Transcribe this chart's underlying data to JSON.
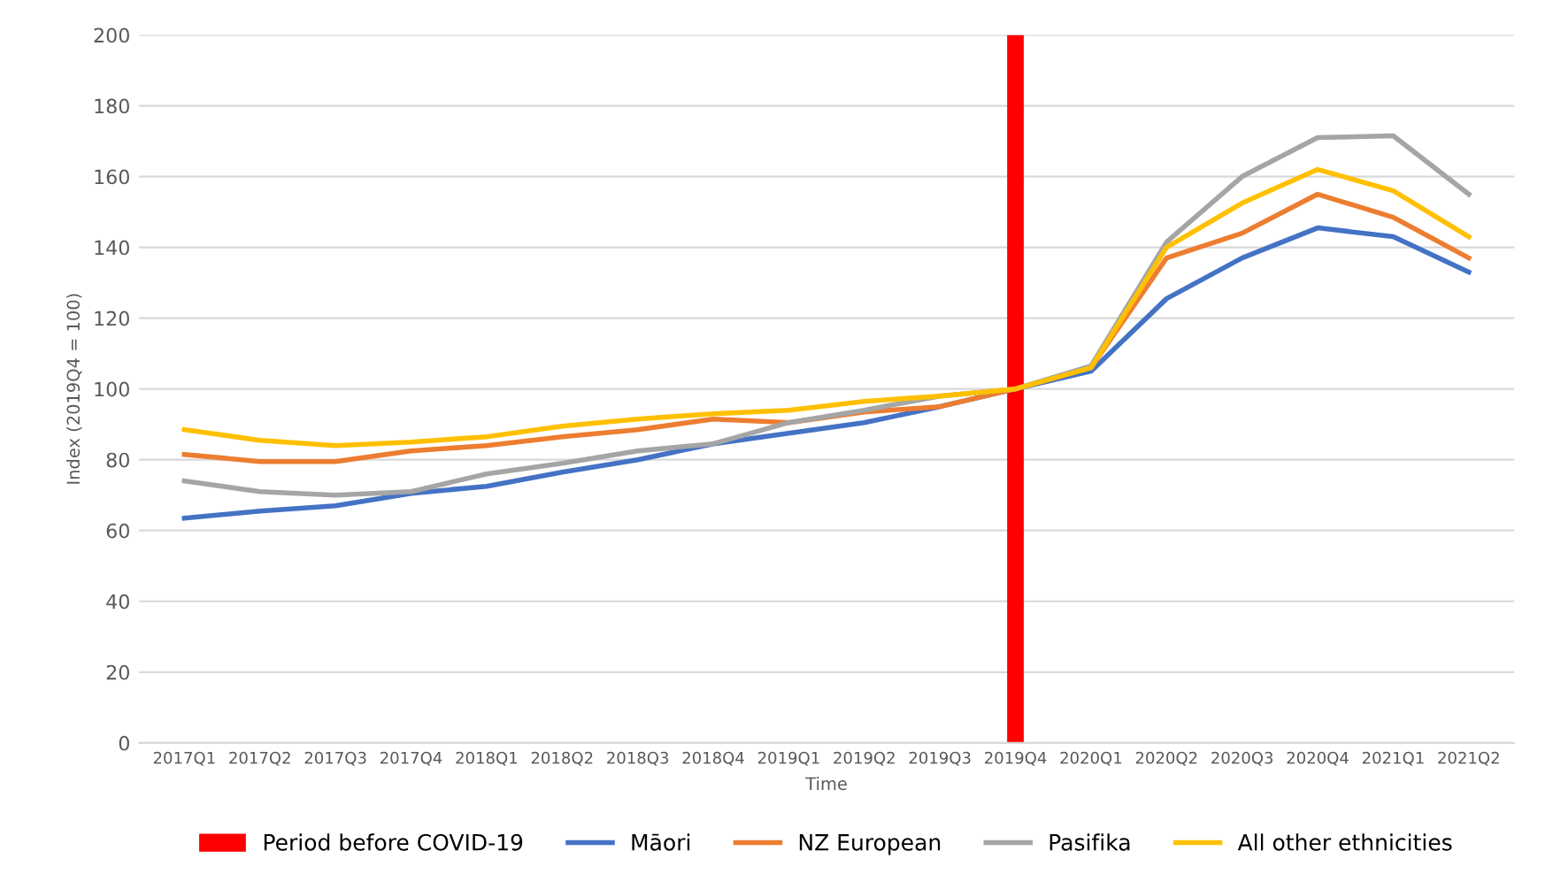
{
  "chart_data": {
    "type": "line",
    "xlabel": "Time",
    "ylabel": "Index (2019Q4 = 100)",
    "categories": [
      "2017Q1",
      "2017Q2",
      "2017Q3",
      "2017Q4",
      "2018Q1",
      "2018Q2",
      "2018Q3",
      "2018Q4",
      "2019Q1",
      "2019Q2",
      "2019Q3",
      "2019Q4",
      "2020Q1",
      "2020Q2",
      "2020Q3",
      "2020Q4",
      "2021Q1",
      "2021Q2"
    ],
    "series": [
      {
        "name": "Period before COVID-19",
        "type": "bar",
        "color": "#ff0000",
        "values": [
          null,
          null,
          null,
          null,
          null,
          null,
          null,
          null,
          null,
          null,
          null,
          200,
          null,
          null,
          null,
          null,
          null,
          null
        ]
      },
      {
        "name": "Māori",
        "color": "#4472c4",
        "values": [
          63.5,
          65.5,
          67,
          70.5,
          72.5,
          76.5,
          80,
          84.5,
          87.5,
          90.5,
          95,
          100,
          105,
          125.5,
          137,
          145.5,
          143,
          133
        ]
      },
      {
        "name": "NZ European",
        "color": "#ed7d31",
        "values": [
          81.5,
          79.5,
          79.5,
          82.5,
          84,
          86.5,
          88.5,
          91.5,
          90.5,
          93.5,
          95,
          100,
          106,
          137,
          144,
          155,
          148.5,
          137
        ]
      },
      {
        "name": "Pasifika",
        "color": "#a5a5a5",
        "values": [
          74,
          71,
          70,
          71,
          76,
          79,
          82.5,
          84.5,
          90.5,
          94,
          98,
          100,
          106.5,
          141.5,
          160,
          171,
          171.5,
          155
        ]
      },
      {
        "name": "All other ethnicities",
        "color": "#ffc000",
        "values": [
          88.5,
          85.5,
          84,
          85,
          86.5,
          89.5,
          91.5,
          93,
          94,
          96.5,
          98,
          100,
          106,
          140,
          152.5,
          162,
          156,
          143
        ]
      }
    ],
    "ylim": [
      0,
      200
    ],
    "yticks": [
      0,
      20,
      40,
      60,
      80,
      100,
      120,
      140,
      160,
      180,
      200
    ],
    "grid": "y",
    "legend": "bottom"
  }
}
